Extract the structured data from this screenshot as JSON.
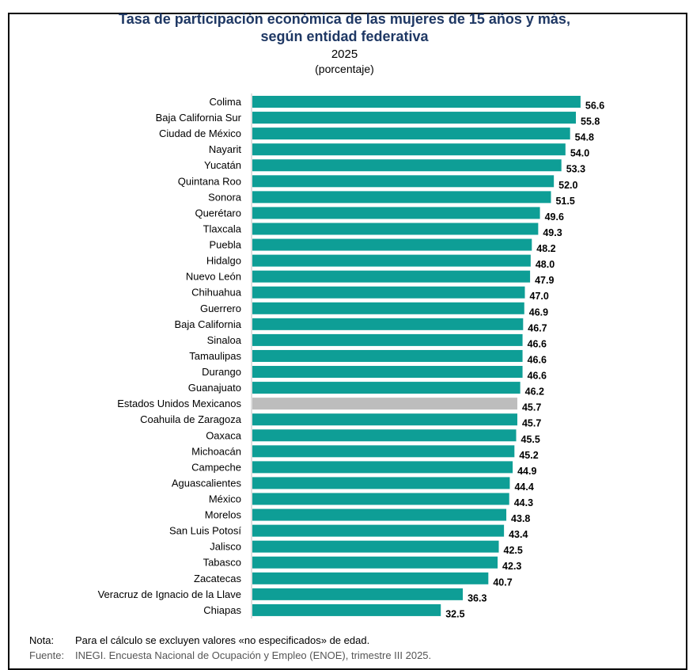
{
  "chart_data": {
    "type": "bar",
    "orientation": "horizontal",
    "title": "Tasa de participación económica de las mujeres de 15 años y más, según entidad federativa",
    "title_line1": "Tasa de participación económica de las mujeres de 15 años y más,",
    "title_line2": "según entidad federativa",
    "subtitle": "2025",
    "unit": "(porcentaje)",
    "xlim": [
      0,
      60
    ],
    "grid": false,
    "legend": "none",
    "colors": {
      "bar": "#0e9e96",
      "highlight": "#bdbdbd"
    },
    "highlight_category": "Estados Unidos Mexicanos",
    "categories": [
      "Colima",
      "Baja California Sur",
      "Ciudad de México",
      "Nayarit",
      "Yucatán",
      "Quintana Roo",
      "Sonora",
      "Querétaro",
      "Tlaxcala",
      "Puebla",
      "Hidalgo",
      "Nuevo León",
      "Chihuahua",
      "Guerrero",
      "Baja California",
      "Sinaloa",
      "Tamaulipas",
      "Durango",
      "Guanajuato",
      "Estados Unidos Mexicanos",
      "Coahuila de Zaragoza",
      "Oaxaca",
      "Michoacán",
      "Campeche",
      "Aguascalientes",
      "México",
      "Morelos",
      "San Luis Potosí",
      "Jalisco",
      "Tabasco",
      "Zacatecas",
      "Veracruz de Ignacio de la Llave",
      "Chiapas"
    ],
    "values": [
      56.6,
      55.8,
      54.8,
      54.0,
      53.3,
      52.0,
      51.5,
      49.6,
      49.3,
      48.2,
      48.0,
      47.9,
      47.0,
      46.9,
      46.7,
      46.6,
      46.6,
      46.6,
      46.2,
      45.7,
      45.7,
      45.5,
      45.2,
      44.9,
      44.4,
      44.3,
      43.8,
      43.4,
      42.5,
      42.3,
      40.7,
      36.3,
      32.5
    ]
  },
  "footer": {
    "note_label": "Nota:",
    "note_text": "Para el cálculo se excluyen valores «no especificados» de edad.",
    "source_label": "Fuente:",
    "source_text": "INEGI. Encuesta Nacional de Ocupación y Empleo (ENOE), trimestre III 2025."
  }
}
